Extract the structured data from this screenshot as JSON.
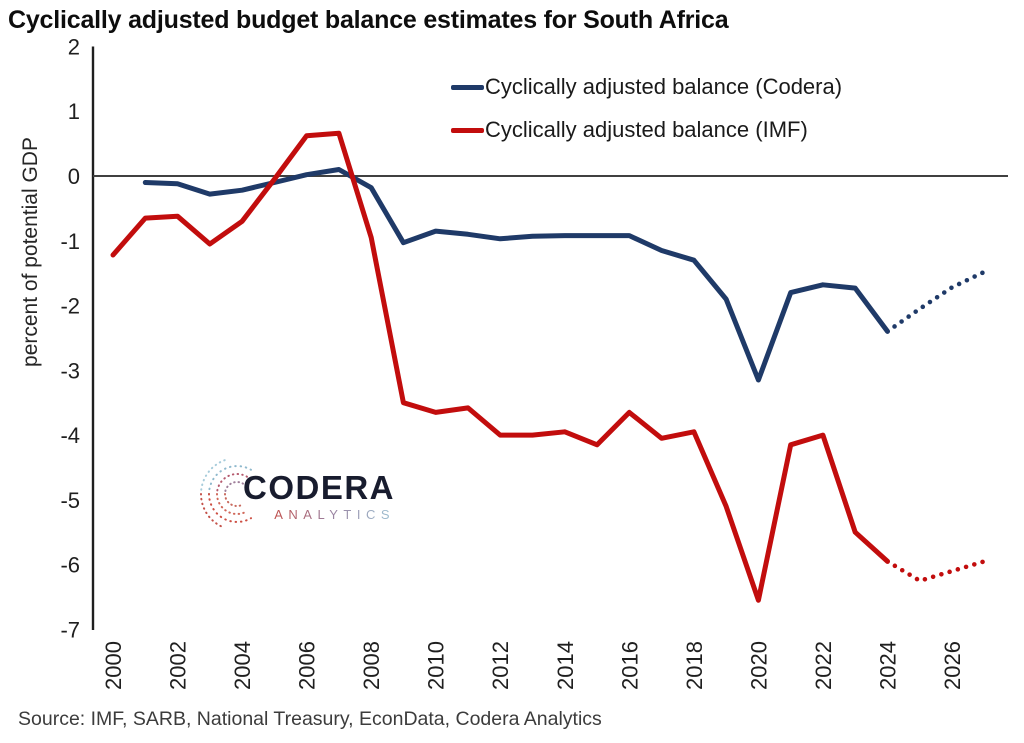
{
  "title": "Cyclically adjusted budget balance estimates for South Africa",
  "source_note": "Source: IMF, SARB, National Treasury, EconData, Codera Analytics",
  "logo": {
    "name": "CODERA",
    "sub": "ANALYTICS"
  },
  "colors": {
    "codera_line": "#1f3a68",
    "imf_line": "#c20d0d",
    "zero_line": "#404040",
    "axis": "#1f1f1f",
    "tick_text": "#1f1f1f"
  },
  "chart_data": {
    "type": "line",
    "title": "Cyclically adjusted budget balance estimates for South Africa",
    "xlabel": "",
    "ylabel": "percent of potential GDP",
    "ylim": [
      -7,
      2
    ],
    "xlim": [
      1999.4,
      2027.7
    ],
    "y_ticks": [
      2,
      1,
      0,
      -1,
      -2,
      -3,
      -4,
      -5,
      -6,
      -7
    ],
    "x_ticks": [
      2000,
      2002,
      2004,
      2006,
      2008,
      2010,
      2012,
      2014,
      2016,
      2018,
      2020,
      2022,
      2024,
      2026
    ],
    "grid": false,
    "zero_line": true,
    "legend_position": "inside-top-center",
    "series": [
      {
        "name": "Cyclically adjusted balance (Codera)",
        "color": "#1f3a68",
        "style": "solid",
        "legend": true,
        "x": [
          2001,
          2002,
          2003,
          2004,
          2005,
          2006,
          2007,
          2008,
          2009,
          2010,
          2011,
          2012,
          2013,
          2014,
          2015,
          2016,
          2017,
          2018,
          2019,
          2020,
          2021,
          2022,
          2023,
          2024
        ],
        "y": [
          -0.1,
          -0.12,
          -0.28,
          -0.22,
          -0.1,
          0.02,
          0.1,
          -0.18,
          -1.03,
          -0.85,
          -0.9,
          -0.97,
          -0.93,
          -0.92,
          -0.92,
          -0.92,
          -1.15,
          -1.3,
          -1.9,
          -3.15,
          -1.8,
          -1.68,
          -1.73,
          -2.4
        ]
      },
      {
        "name": "Cyclically adjusted balance (Codera) projection",
        "color": "#1f3a68",
        "style": "dotted",
        "legend": false,
        "x": [
          2024,
          2025,
          2026,
          2027
        ],
        "y": [
          -2.4,
          -2.05,
          -1.72,
          -1.48
        ]
      },
      {
        "name": "Cyclically adjusted balance (IMF)",
        "color": "#c20d0d",
        "style": "solid",
        "legend": true,
        "x": [
          2000,
          2001,
          2002,
          2003,
          2004,
          2005,
          2006,
          2007,
          2008,
          2009,
          2010,
          2011,
          2012,
          2013,
          2014,
          2015,
          2016,
          2017,
          2018,
          2019,
          2020,
          2021,
          2022,
          2023,
          2024
        ],
        "y": [
          -1.22,
          -0.65,
          -0.62,
          -1.05,
          -0.7,
          -0.05,
          0.62,
          0.66,
          -0.95,
          -3.5,
          -3.65,
          -3.58,
          -4.0,
          -4.0,
          -3.95,
          -4.15,
          -3.65,
          -4.05,
          -3.95,
          -5.1,
          -6.55,
          -4.15,
          -4.0,
          -5.5,
          -5.95
        ]
      },
      {
        "name": "Cyclically adjusted balance (IMF) projection",
        "color": "#c20d0d",
        "style": "dotted",
        "legend": false,
        "x": [
          2024,
          2025,
          2026,
          2027
        ],
        "y": [
          -5.95,
          -6.25,
          -6.1,
          -5.95
        ]
      }
    ]
  }
}
